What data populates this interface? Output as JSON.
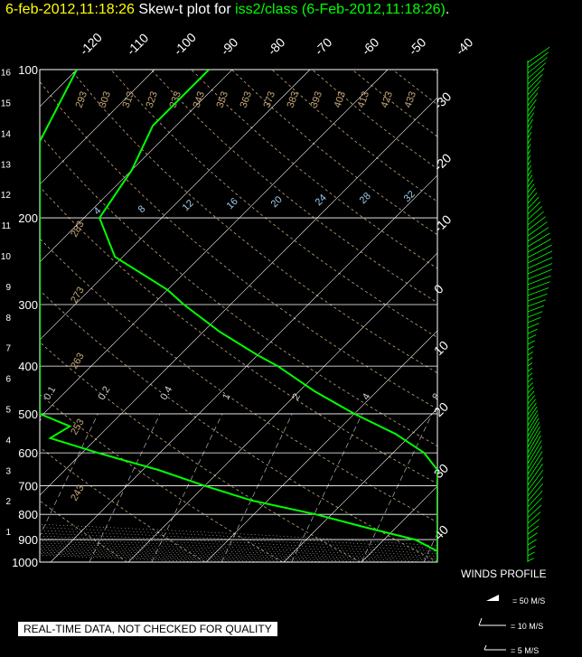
{
  "title": {
    "timestamp": "6-feb-2012,11:18:26",
    "label": "Skew-t plot for",
    "dataset": "iss2/class (6-Feb-2012,11:18:26)",
    "period": "."
  },
  "qc_notice": "REAL-TIME DATA, NOT CHECKED FOR QUALITY",
  "winds": {
    "title": "WINDS PROFILE",
    "legend": [
      "= 50 M/S",
      "= 10 M/S",
      "= 5 M/S"
    ]
  },
  "colors": {
    "background": "#000000",
    "sounding": "#00ff00",
    "grid": "#ffffff",
    "dry_adiabats": "#c8a878",
    "moist_adiabats": "#d0d0d0",
    "mixing_ratio": "#9ecbe8",
    "timestamp": "#ffff00"
  },
  "chart_data": {
    "type": "skew-t",
    "pressure_levels_mb": [
      100,
      200,
      300,
      400,
      500,
      600,
      700,
      800,
      900,
      1000
    ],
    "height_km_ticks": [
      1,
      2,
      3,
      4,
      5,
      6,
      7,
      8,
      9,
      10,
      11,
      12,
      13,
      14,
      15,
      16
    ],
    "temperature_ticks_top": [
      -120,
      -110,
      -100,
      -90,
      -80,
      -70,
      -60,
      -50,
      -40
    ],
    "temperature_ticks_right": [
      -30,
      -20,
      -10,
      0,
      10,
      20,
      30,
      40
    ],
    "dry_adiabat_labels": [
      243,
      253,
      263,
      273,
      283,
      293,
      303,
      313,
      323,
      333,
      343,
      353,
      363,
      373,
      383,
      393,
      403,
      413,
      423,
      433
    ],
    "mixing_ratio_labels": [
      "0.1",
      "0.2",
      "0.4",
      "1",
      "2",
      "4",
      "8",
      "12",
      "20"
    ],
    "theta_e_labels": [
      4,
      8,
      12,
      16,
      20,
      24,
      28,
      32
    ],
    "temperature_profile": [
      [
        100,
        -83
      ],
      [
        130,
        -83
      ],
      [
        160,
        -80
      ],
      [
        200,
        -78
      ],
      [
        240,
        -71
      ],
      [
        280,
        -60
      ],
      [
        300,
        -56
      ],
      [
        340,
        -48
      ],
      [
        380,
        -40
      ],
      [
        400,
        -36
      ],
      [
        450,
        -28
      ],
      [
        500,
        -20
      ],
      [
        550,
        -12
      ],
      [
        600,
        -6
      ],
      [
        650,
        -1
      ],
      [
        700,
        2
      ],
      [
        750,
        5
      ],
      [
        800,
        9
      ],
      [
        850,
        12
      ],
      [
        900,
        15
      ],
      [
        950,
        17
      ],
      [
        1000,
        18
      ]
    ],
    "dewpoint_profile": [
      [
        100,
        -100
      ],
      [
        140,
        -98
      ],
      [
        175,
        -92
      ],
      [
        200,
        -90
      ],
      [
        245,
        -85
      ],
      [
        280,
        -77
      ],
      [
        300,
        -86
      ],
      [
        350,
        -95
      ],
      [
        400,
        -100
      ],
      [
        415,
        -88
      ],
      [
        450,
        -77
      ],
      [
        475,
        -70
      ],
      [
        500,
        -64
      ],
      [
        530,
        -55
      ],
      [
        560,
        -56
      ],
      [
        600,
        -48
      ],
      [
        650,
        -38
      ],
      [
        700,
        -30
      ],
      [
        750,
        -22
      ],
      [
        800,
        -12
      ],
      [
        850,
        -4
      ],
      [
        900,
        4
      ],
      [
        950,
        10
      ],
      [
        1000,
        14
      ]
    ],
    "wind_profile_present": true
  }
}
